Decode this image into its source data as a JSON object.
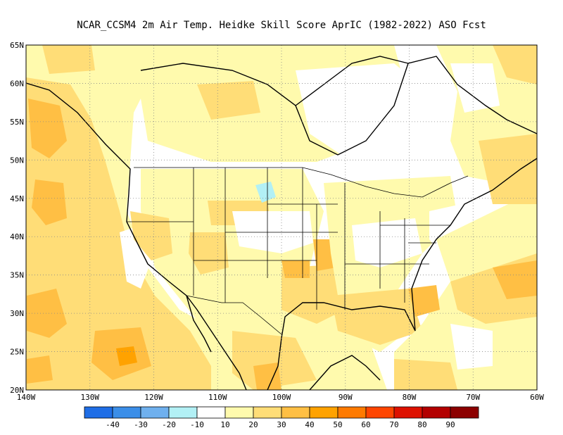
{
  "title": "NCAR_CCSM4  2m Air Temp. Heidke Skill Score AprIC (1982-2022) ASO Fcst",
  "map": {
    "lon_labels": [
      "140W",
      "130W",
      "120W",
      "110W",
      "100W",
      "90W",
      "80W",
      "70W",
      "60W"
    ],
    "lat_labels": [
      "65N",
      "60N",
      "55N",
      "50N",
      "45N",
      "40N",
      "35N",
      "30N",
      "25N",
      "20N"
    ],
    "lon_range": [
      -140,
      -60
    ],
    "lat_range": [
      20,
      65
    ],
    "gridlines": "dotted"
  },
  "colorbar": {
    "tick_labels": [
      "-40",
      "-30",
      "-20",
      "-10",
      "10",
      "20",
      "30",
      "40",
      "50",
      "60",
      "70",
      "80",
      "90"
    ],
    "colors": [
      "#1f6ee6",
      "#3b8ee8",
      "#6fb0ee",
      "#b2f0f5",
      "#ffffff",
      "#fffaad",
      "#ffdd77",
      "#ffbf44",
      "#ffa200",
      "#ff7a00",
      "#ff4500",
      "#dd1100",
      "#b30000",
      "#8c0000"
    ]
  },
  "colors": {
    "pale_yellow": "#fffaad",
    "light_orange": "#ffdd77",
    "orange": "#ffbf44",
    "deep_orange": "#ffa200",
    "light_blue": "#b2f0f5"
  }
}
